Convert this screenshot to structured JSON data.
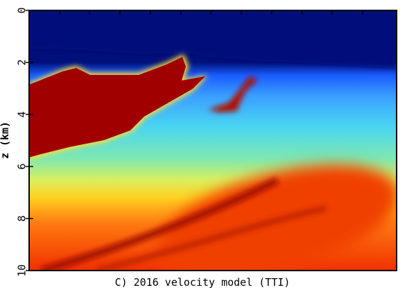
{
  "chart_data": {
    "type": "image",
    "title": "C) 2016 velocity model (TTI)",
    "y_label": "z (km)",
    "ylim": [
      0,
      10
    ],
    "yticks": [
      0,
      2,
      4,
      6,
      8,
      10
    ]
  }
}
